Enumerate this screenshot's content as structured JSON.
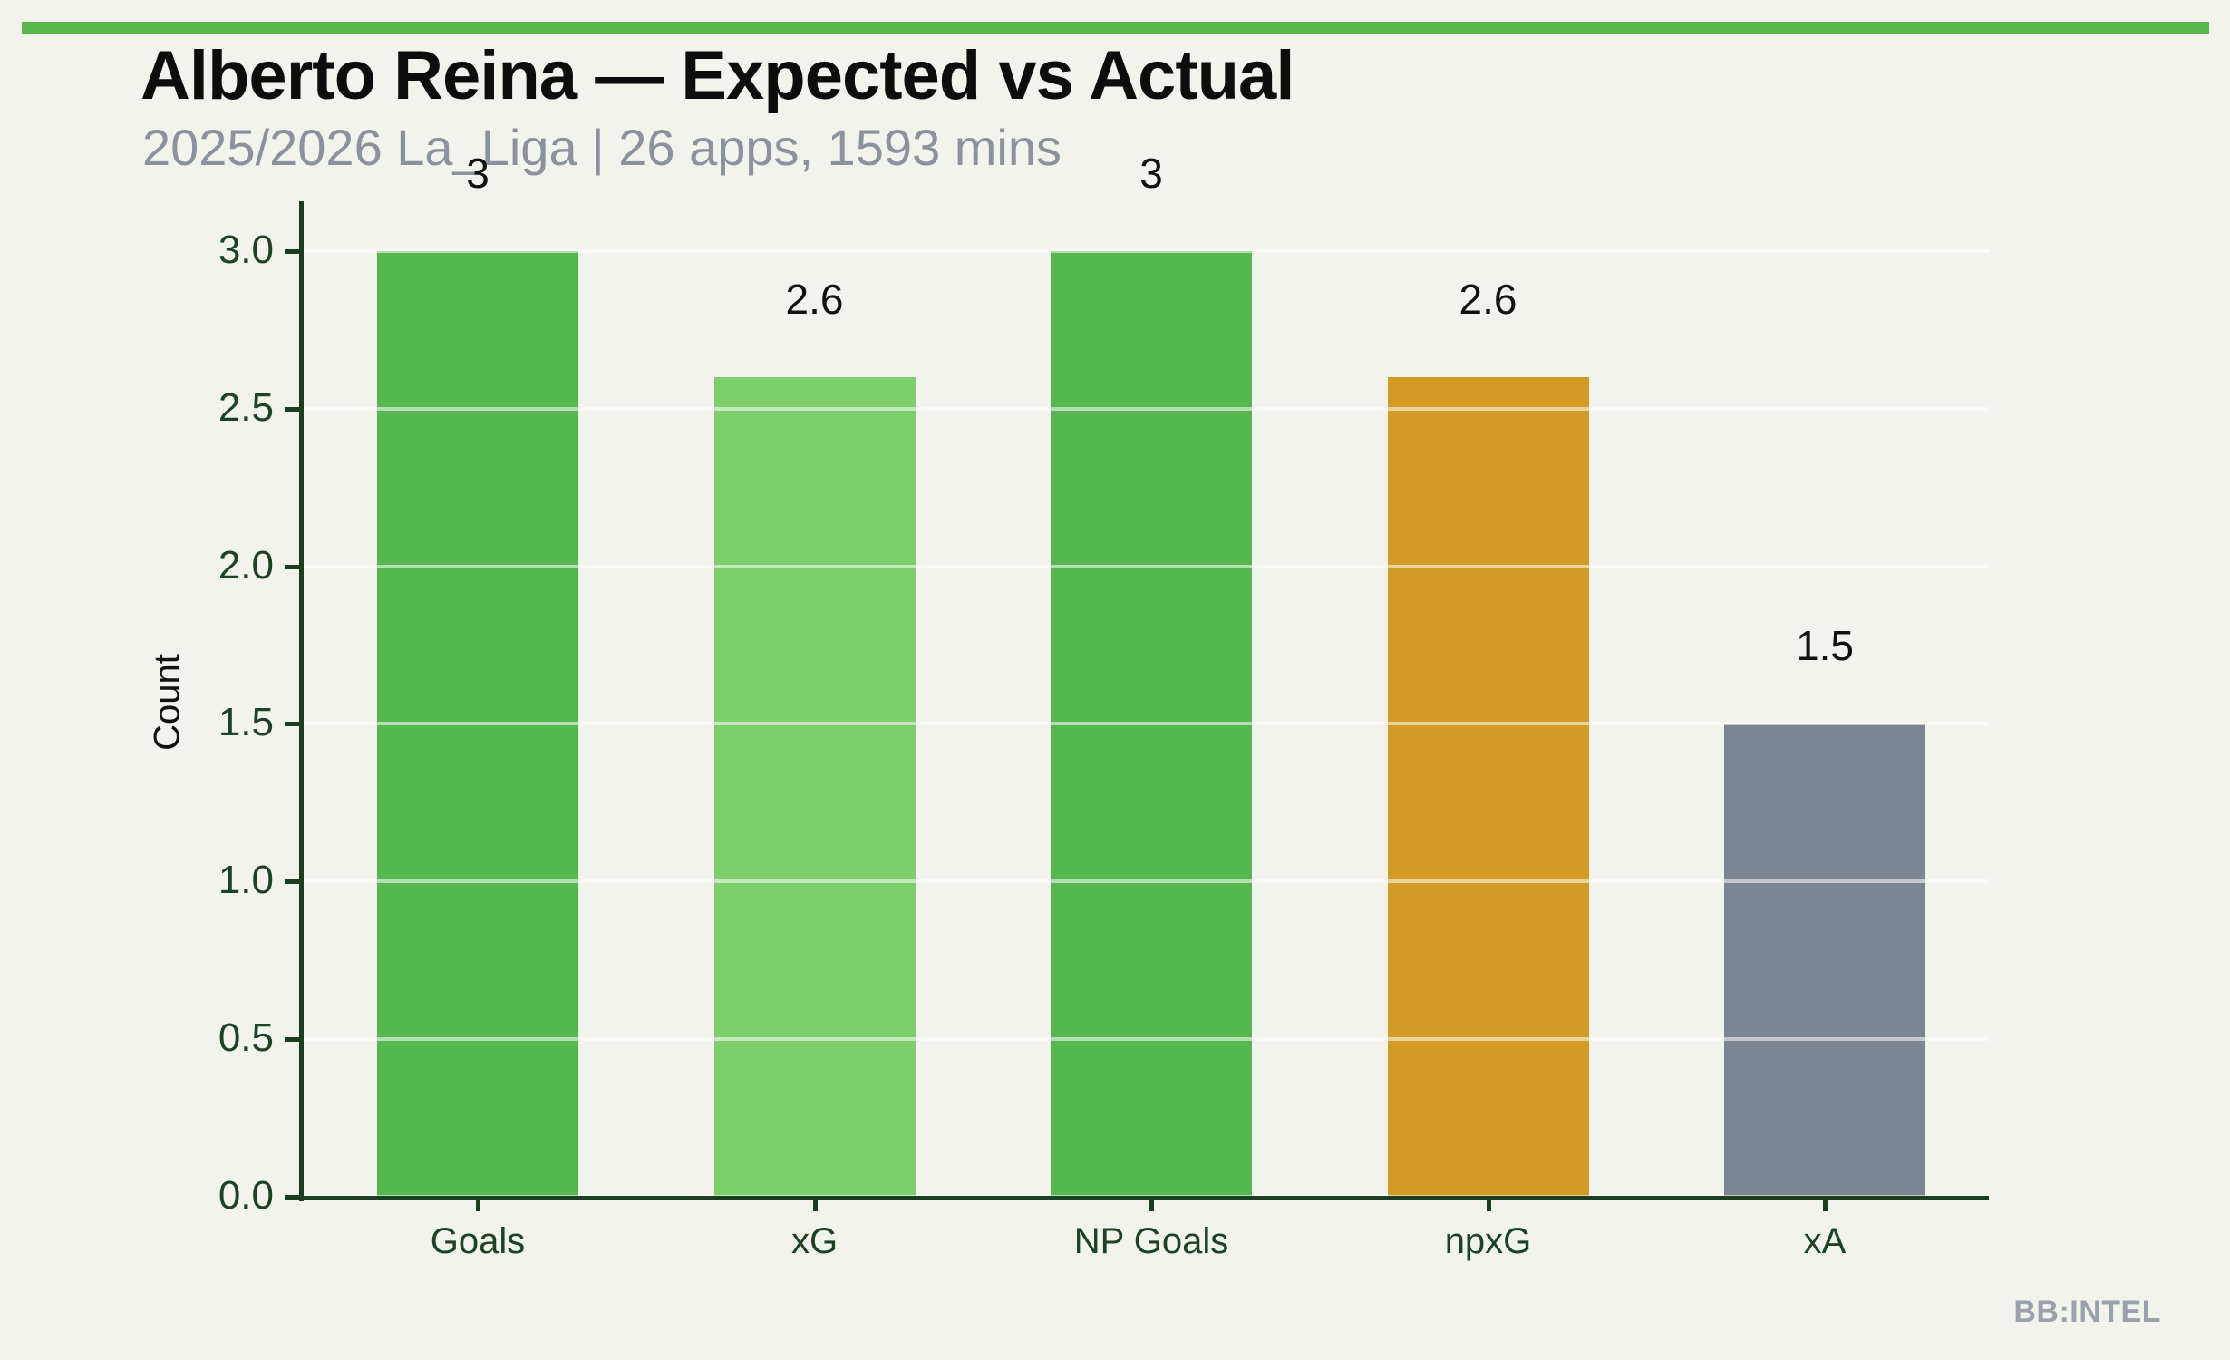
{
  "page": {
    "background_color": "#f1f3ec",
    "accent_stripe_color": "#58b84b"
  },
  "header": {
    "title": "Alberto Reina — Expected vs Actual",
    "subtitle": "2025/2026 La_Liga | 26 apps, 1593 mins",
    "title_color": "#0d0d0d",
    "subtitle_color": "#8b929c"
  },
  "footer": {
    "watermark": "BB:INTEL",
    "watermark_color": "#9aa1ab"
  },
  "chart_data": {
    "type": "bar",
    "title": "Alberto Reina — Expected vs Actual",
    "subtitle": "2025/2026 La_Liga | 26 apps, 1593 mins",
    "categories": [
      "Goals",
      "xG",
      "NP Goals",
      "npxG",
      "xA"
    ],
    "values": [
      3,
      2.6,
      3,
      2.6,
      1.5
    ],
    "value_labels": [
      "3",
      "2.6",
      "3",
      "2.6",
      "1.5"
    ],
    "bar_colors": [
      "#55b84e",
      "#7ccf6b",
      "#55b84e",
      "#d49a26",
      "#7d8590"
    ],
    "xlabel": "",
    "ylabel": "Count",
    "ylim": [
      0,
      3.15
    ],
    "yticks": [
      0.0,
      0.5,
      1.0,
      1.5,
      2.0,
      2.5,
      3.0
    ],
    "ytick_labels": [
      "0.0",
      "0.5",
      "1.0",
      "1.5",
      "2.0",
      "2.5",
      "3.0"
    ],
    "grid": "horizontal translucent white lines drawn over bars",
    "legend_position": "none",
    "axis_color": "#1b3e21",
    "tick_label_color": "#1e4226",
    "ylabel_color": "#111111",
    "data_label_color": "#111111",
    "gridline_color": "rgba(255,255,255,0.55)"
  }
}
